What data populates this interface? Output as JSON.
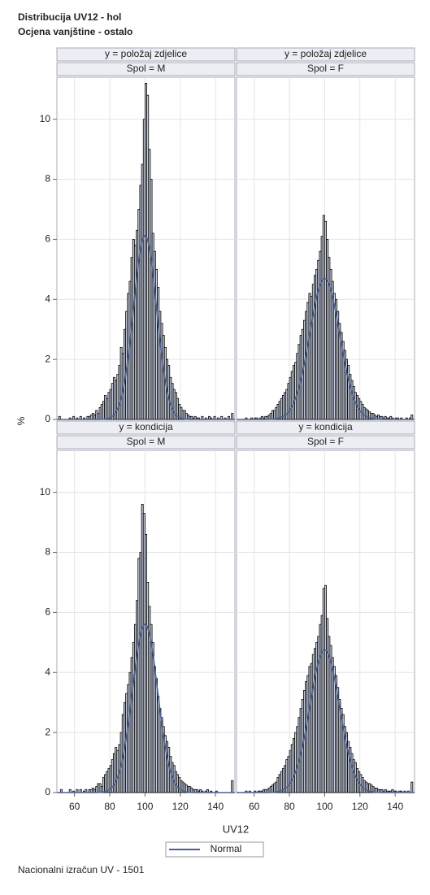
{
  "title": "Distribucija UV12 - hol",
  "subtitle": "Ocjena vanjštine - ostalo",
  "xlabel": "UV12",
  "ylabel": "%",
  "legend": {
    "name": "Normal",
    "color": "#4b6090"
  },
  "footnote": "Nacionalni izračun UV - 1501",
  "chart_data": [
    {
      "type": "histogram",
      "row_label": "y = položaj zdjelice",
      "col_label": "Spol = M",
      "bar_color": "#c8cfdf",
      "bins": [
        50,
        51,
        52,
        53,
        54,
        55,
        56,
        57,
        58,
        59,
        60,
        61,
        62,
        63,
        64,
        65,
        66,
        67,
        68,
        69,
        70,
        71,
        72,
        73,
        74,
        75,
        76,
        77,
        78,
        79,
        80,
        81,
        82,
        83,
        84,
        85,
        86,
        87,
        88,
        89,
        90,
        91,
        92,
        93,
        94,
        95,
        96,
        97,
        98,
        99,
        100,
        101,
        102,
        103,
        104,
        105,
        106,
        107,
        108,
        109,
        110,
        111,
        112,
        113,
        114,
        115,
        116,
        117,
        118,
        119,
        120,
        121,
        122,
        123,
        124,
        125,
        126,
        127,
        128,
        129,
        130,
        131,
        132,
        133,
        134,
        135,
        136,
        137,
        138,
        139,
        140,
        141,
        142,
        143,
        144,
        145,
        146,
        147,
        148,
        149,
        150
      ],
      "values": [
        0,
        0.1,
        0,
        0,
        0,
        0,
        0,
        0.05,
        0,
        0.1,
        0,
        0.05,
        0,
        0.1,
        0,
        0.05,
        0,
        0.1,
        0.1,
        0.15,
        0.2,
        0.15,
        0.3,
        0.2,
        0.4,
        0.5,
        0.6,
        0.8,
        0.7,
        0.9,
        1.0,
        1.2,
        1.4,
        1.3,
        1.5,
        1.8,
        2.4,
        2.2,
        3.0,
        3.6,
        4.2,
        4.6,
        5.4,
        6.0,
        5.8,
        6.3,
        7.0,
        7.8,
        8.5,
        10.0,
        11.2,
        10.8,
        9.0,
        8.0,
        6.2,
        5.6,
        5.0,
        4.4,
        3.6,
        3.2,
        2.8,
        2.4,
        2.0,
        1.8,
        1.4,
        1.2,
        1.0,
        0.9,
        0.7,
        0.5,
        0.4,
        0.3,
        0.3,
        0.2,
        0.15,
        0.1,
        0.1,
        0.05,
        0.1,
        0.05,
        0.05,
        0,
        0.1,
        0,
        0.05,
        0,
        0.1,
        0.05,
        0,
        0.1,
        0,
        0.05,
        0,
        0.1,
        0,
        0.05,
        0,
        0.1,
        0,
        0.2
      ],
      "normal": {
        "mean": 100,
        "sd": 6.5
      },
      "xlim": [
        50,
        151
      ],
      "ylim": [
        0,
        11.4
      ],
      "xticks": [
        60,
        80,
        100,
        120,
        140
      ],
      "yticks": [
        0,
        2,
        4,
        6,
        8,
        10
      ],
      "grid": true
    },
    {
      "type": "histogram",
      "row_label": "y = položaj zdjelice",
      "col_label": "Spol = F",
      "bar_color": "#c8cfdf",
      "bins": [
        50,
        51,
        52,
        53,
        54,
        55,
        56,
        57,
        58,
        59,
        60,
        61,
        62,
        63,
        64,
        65,
        66,
        67,
        68,
        69,
        70,
        71,
        72,
        73,
        74,
        75,
        76,
        77,
        78,
        79,
        80,
        81,
        82,
        83,
        84,
        85,
        86,
        87,
        88,
        89,
        90,
        91,
        92,
        93,
        94,
        95,
        96,
        97,
        98,
        99,
        100,
        101,
        102,
        103,
        104,
        105,
        106,
        107,
        108,
        109,
        110,
        111,
        112,
        113,
        114,
        115,
        116,
        117,
        118,
        119,
        120,
        121,
        122,
        123,
        124,
        125,
        126,
        127,
        128,
        129,
        130,
        131,
        132,
        133,
        134,
        135,
        136,
        137,
        138,
        139,
        140,
        141,
        142,
        143,
        144,
        145,
        146,
        147,
        148,
        149,
        150
      ],
      "values": [
        0,
        0,
        0,
        0,
        0,
        0.05,
        0,
        0,
        0.05,
        0,
        0.05,
        0.05,
        0,
        0.05,
        0.1,
        0.05,
        0.1,
        0.1,
        0.15,
        0.2,
        0.3,
        0.3,
        0.4,
        0.5,
        0.6,
        0.7,
        0.8,
        0.9,
        1.0,
        1.2,
        1.4,
        1.6,
        1.8,
        1.9,
        2.2,
        2.5,
        2.8,
        3.0,
        3.3,
        3.6,
        3.9,
        4.2,
        4.1,
        4.5,
        4.8,
        5.0,
        5.3,
        5.6,
        6.1,
        6.8,
        6.6,
        6.0,
        5.4,
        5.0,
        4.6,
        4.2,
        4.0,
        3.6,
        3.2,
        2.9,
        2.6,
        2.3,
        2.0,
        1.8,
        1.5,
        1.3,
        1.1,
        0.9,
        0.8,
        0.7,
        0.6,
        0.5,
        0.4,
        0.35,
        0.3,
        0.25,
        0.2,
        0.2,
        0.15,
        0.1,
        0.15,
        0.1,
        0.1,
        0.05,
        0.1,
        0.05,
        0.05,
        0.1,
        0.05,
        0,
        0.05,
        0.05,
        0,
        0.05,
        0,
        0,
        0.05,
        0,
        0.05,
        0.15
      ],
      "normal": {
        "mean": 100,
        "sd": 8.5
      },
      "xlim": [
        50,
        151
      ],
      "ylim": [
        0,
        11.4
      ],
      "xticks": [
        60,
        80,
        100,
        120,
        140
      ],
      "yticks": [
        0,
        2,
        4,
        6,
        8,
        10
      ],
      "grid": true
    },
    {
      "type": "histogram",
      "row_label": "y = kondicija",
      "col_label": "Spol = M",
      "bar_color": "#c8cfdf",
      "bins": [
        50,
        51,
        52,
        53,
        54,
        55,
        56,
        57,
        58,
        59,
        60,
        61,
        62,
        63,
        64,
        65,
        66,
        67,
        68,
        69,
        70,
        71,
        72,
        73,
        74,
        75,
        76,
        77,
        78,
        79,
        80,
        81,
        82,
        83,
        84,
        85,
        86,
        87,
        88,
        89,
        90,
        91,
        92,
        93,
        94,
        95,
        96,
        97,
        98,
        99,
        100,
        101,
        102,
        103,
        104,
        105,
        106,
        107,
        108,
        109,
        110,
        111,
        112,
        113,
        114,
        115,
        116,
        117,
        118,
        119,
        120,
        121,
        122,
        123,
        124,
        125,
        126,
        127,
        128,
        129,
        130,
        131,
        132,
        133,
        134,
        135,
        136,
        137,
        138,
        139,
        140,
        141,
        142,
        143,
        144,
        145,
        146,
        147,
        148,
        149,
        150
      ],
      "values": [
        0,
        0,
        0.1,
        0,
        0,
        0,
        0,
        0.1,
        0,
        0.05,
        0,
        0.1,
        0,
        0.1,
        0,
        0.05,
        0.1,
        0,
        0.1,
        0.1,
        0.15,
        0.1,
        0.2,
        0.3,
        0.3,
        0.2,
        0.5,
        0.6,
        0.7,
        0.8,
        0.9,
        1.1,
        1.3,
        1.5,
        1.4,
        1.6,
        2.0,
        2.6,
        3.0,
        3.3,
        3.6,
        4.0,
        4.5,
        5.0,
        5.6,
        6.4,
        7.8,
        8.0,
        9.6,
        9.3,
        8.6,
        7.0,
        6.2,
        5.6,
        5.0,
        4.2,
        3.8,
        3.2,
        2.8,
        2.5,
        2.2,
        1.9,
        1.7,
        1.5,
        1.2,
        1.0,
        0.9,
        0.7,
        0.6,
        0.5,
        0.4,
        0.35,
        0.3,
        0.25,
        0.2,
        0.2,
        0.15,
        0.1,
        0.1,
        0.1,
        0.05,
        0.1,
        0.05,
        0,
        0.05,
        0.1,
        0,
        0.05,
        0,
        0,
        0.05,
        0,
        0,
        0,
        0,
        0,
        0,
        0,
        0,
        0.4
      ],
      "normal": {
        "mean": 100,
        "sd": 7.1
      },
      "xlim": [
        50,
        151
      ],
      "ylim": [
        0,
        11.4
      ],
      "xticks": [
        60,
        80,
        100,
        120,
        140
      ],
      "yticks": [
        0,
        2,
        4,
        6,
        8,
        10
      ],
      "grid": true
    },
    {
      "type": "histogram",
      "row_label": "y = kondicija",
      "col_label": "Spol = F",
      "bar_color": "#c8cfdf",
      "bins": [
        50,
        51,
        52,
        53,
        54,
        55,
        56,
        57,
        58,
        59,
        60,
        61,
        62,
        63,
        64,
        65,
        66,
        67,
        68,
        69,
        70,
        71,
        72,
        73,
        74,
        75,
        76,
        77,
        78,
        79,
        80,
        81,
        82,
        83,
        84,
        85,
        86,
        87,
        88,
        89,
        90,
        91,
        92,
        93,
        94,
        95,
        96,
        97,
        98,
        99,
        100,
        101,
        102,
        103,
        104,
        105,
        106,
        107,
        108,
        109,
        110,
        111,
        112,
        113,
        114,
        115,
        116,
        117,
        118,
        119,
        120,
        121,
        122,
        123,
        124,
        125,
        126,
        127,
        128,
        129,
        130,
        131,
        132,
        133,
        134,
        135,
        136,
        137,
        138,
        139,
        140,
        141,
        142,
        143,
        144,
        145,
        146,
        147,
        148,
        149,
        150
      ],
      "values": [
        0,
        0,
        0,
        0,
        0,
        0.05,
        0,
        0.05,
        0,
        0,
        0.05,
        0,
        0.05,
        0.05,
        0.05,
        0.1,
        0.1,
        0.1,
        0.15,
        0.2,
        0.25,
        0.3,
        0.35,
        0.5,
        0.6,
        0.7,
        0.8,
        0.9,
        1.1,
        1.2,
        1.4,
        1.6,
        1.8,
        2.0,
        2.2,
        2.5,
        2.8,
        3.1,
        3.4,
        3.7,
        3.9,
        4.2,
        4.3,
        4.6,
        4.8,
        5.0,
        5.2,
        5.6,
        5.9,
        6.8,
        6.9,
        5.8,
        5.2,
        4.9,
        4.5,
        4.2,
        3.9,
        3.5,
        3.1,
        2.8,
        2.6,
        2.2,
        2.0,
        1.7,
        1.5,
        1.3,
        1.1,
        1.0,
        0.8,
        0.7,
        0.6,
        0.5,
        0.4,
        0.35,
        0.3,
        0.3,
        0.25,
        0.2,
        0.15,
        0.15,
        0.1,
        0.1,
        0.1,
        0.05,
        0.1,
        0.05,
        0.05,
        0.05,
        0.1,
        0.05,
        0.05,
        0,
        0.05,
        0.05,
        0,
        0.05,
        0,
        0.05,
        0,
        0.35
      ],
      "normal": {
        "mean": 100,
        "sd": 8.4
      },
      "xlim": [
        50,
        151
      ],
      "ylim": [
        0,
        11.4
      ],
      "xticks": [
        60,
        80,
        100,
        120,
        140
      ],
      "yticks": [
        0,
        2,
        4,
        6,
        8,
        10
      ],
      "grid": true
    }
  ]
}
